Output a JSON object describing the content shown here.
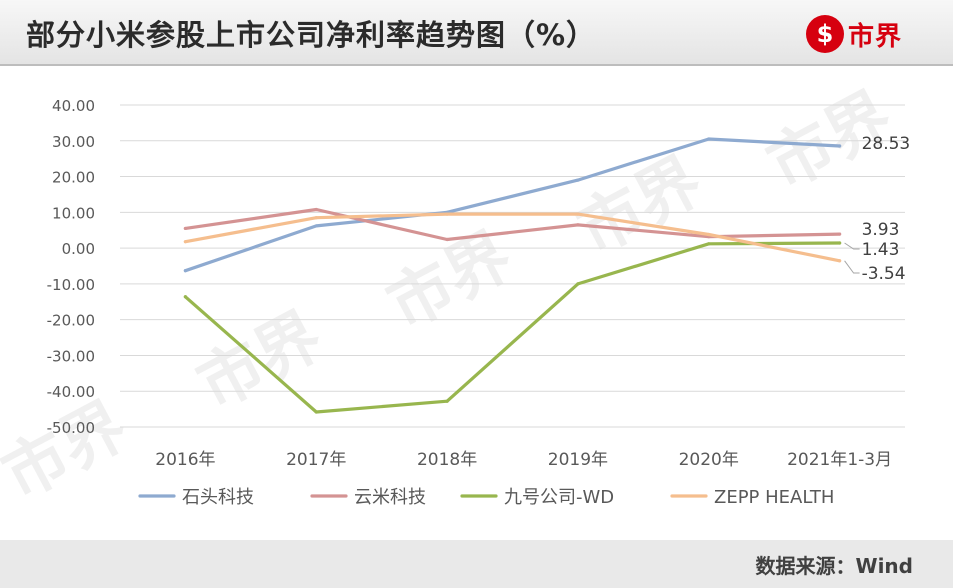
{
  "title": "部分小米参股上市公司净利率趋势图（%）",
  "logo": {
    "mark": "$",
    "text": "市界"
  },
  "source": "数据来源：Wind",
  "watermark_text": "市界",
  "colors": {
    "石头科技": "#8eaad0",
    "云米科技": "#d49393",
    "九号公司-WD": "#98b64e",
    "ZEPP HEALTH": "#f5be8e",
    "grid": "#d9d9d9",
    "axis_text": "#595959",
    "accent": "#d6000f"
  },
  "chart_data": {
    "type": "line",
    "title": "部分小米参股上市公司净利率趋势图（%）",
    "xlabel": "",
    "ylabel": "",
    "categories": [
      "2016年",
      "2017年",
      "2018年",
      "2019年",
      "2020年",
      "2021年1-3月"
    ],
    "ylim": [
      -50,
      40
    ],
    "yticks": [
      "40.00",
      "30.00",
      "20.00",
      "10.00",
      "0.00",
      "-10.00",
      "-20.00",
      "-30.00",
      "-40.00",
      "-50.00"
    ],
    "ytick_values": [
      40,
      30,
      20,
      10,
      0,
      -10,
      -20,
      -30,
      -40,
      -50
    ],
    "grid": true,
    "legend_position": "bottom",
    "series": [
      {
        "name": "石头科技",
        "values": [
          -6.3,
          6.2,
          10.0,
          19.0,
          30.5,
          28.53
        ]
      },
      {
        "name": "云米科技",
        "values": [
          5.5,
          10.8,
          2.4,
          6.5,
          3.2,
          3.93
        ]
      },
      {
        "name": "九号公司-WD",
        "values": [
          -13.6,
          -45.8,
          -42.8,
          -10.0,
          1.2,
          1.43
        ]
      },
      {
        "name": "ZEPP HEALTH",
        "values": [
          1.8,
          8.5,
          9.5,
          9.5,
          3.8,
          -3.54
        ]
      }
    ],
    "end_labels": [
      {
        "series": "石头科技",
        "text": "28.53"
      },
      {
        "series": "云米科技",
        "text": "3.93"
      },
      {
        "series": "九号公司-WD",
        "text": "1.43"
      },
      {
        "series": "ZEPP HEALTH",
        "text": "-3.54"
      }
    ]
  }
}
